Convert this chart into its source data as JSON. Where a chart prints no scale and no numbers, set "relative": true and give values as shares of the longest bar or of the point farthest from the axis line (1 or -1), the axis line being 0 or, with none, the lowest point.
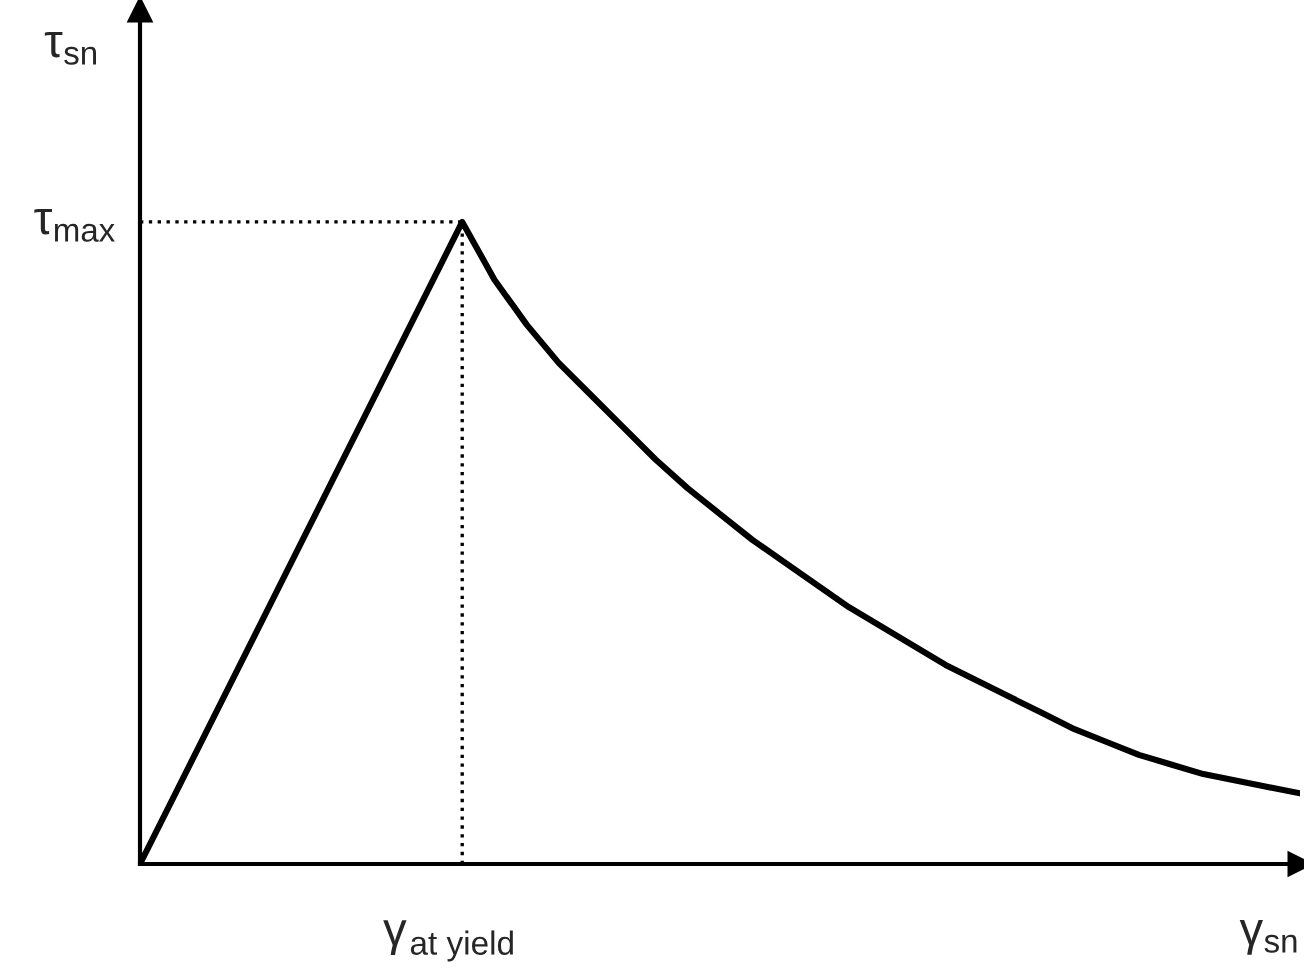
{
  "chart_data": {
    "type": "line",
    "relative": true,
    "xlabel": "γ$_{sn}$",
    "ylabel": "τ$_{sn}$",
    "categories": [
      null,
      null,
      null,
      null,
      null,
      null,
      null,
      null,
      null,
      null,
      null,
      null,
      null,
      null,
      null,
      null,
      null,
      null,
      null,
      null,
      null,
      null,
      null,
      null,
      null,
      null,
      null,
      null,
      null,
      null,
      null,
      null,
      null,
      null,
      null,
      null,
      null
    ],
    "series": [
      {
        "color": "#000000",
        "values": [
          0,
          0.1,
          0.2,
          0.3,
          0.4,
          0.5,
          0.6,
          0.7,
          0.8,
          0.9,
          1.0,
          0.91,
          0.84,
          0.78,
          0.73,
          0.68,
          0.63,
          0.585,
          0.545,
          0.505,
          0.47,
          0.435,
          0.4,
          0.37,
          0.34,
          0.31,
          0.285,
          0.26,
          0.235,
          0.21,
          0.19,
          0.17,
          0.155,
          0.14,
          0.13,
          0.12,
          0.11
        ]
      }
    ],
    "ref_lines": [
      {
        "axis": "y",
        "value": 1,
        "label": "τ$_{max}$",
        "line_style": "dotted",
        "color": "#000000"
      }
    ],
    "annotations": [
      "γ$_{at yield}$"
    ],
    "marker": "none",
    "line_style": "solid",
    "grid": false
  }
}
